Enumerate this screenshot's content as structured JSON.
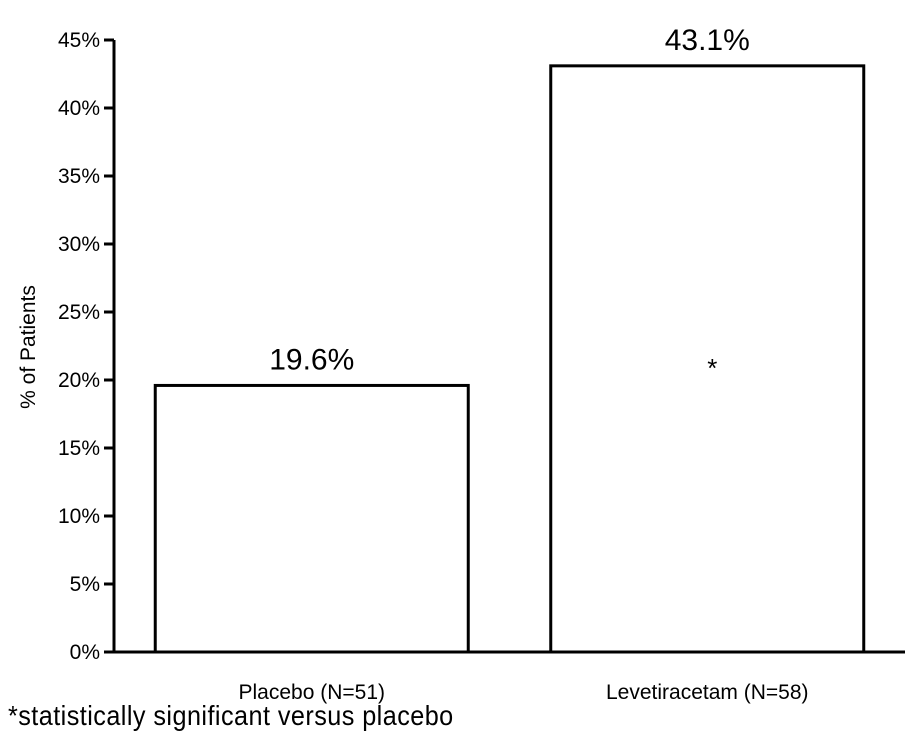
{
  "chart_data": {
    "type": "bar",
    "categories": [
      "Placebo (N=51)",
      "Levetiracetam (N=58)"
    ],
    "values": [
      19.6,
      43.1
    ],
    "data_labels": [
      "19.6%",
      "43.1%"
    ],
    "significance_markers": [
      "",
      "*"
    ],
    "title": "",
    "xlabel": "",
    "ylabel": "% of Patients",
    "ylim": [
      0,
      45
    ],
    "yticks": [
      "0%",
      "5%",
      "10%",
      "15%",
      "20%",
      "25%",
      "30%",
      "35%",
      "40%",
      "45%"
    ],
    "ytick_values": [
      0,
      5,
      10,
      15,
      20,
      25,
      30,
      35,
      40,
      45
    ],
    "grid": false,
    "bar_fill": "#ffffff",
    "bar_stroke": "#000000"
  },
  "footnote": "*statistically significant versus placebo"
}
